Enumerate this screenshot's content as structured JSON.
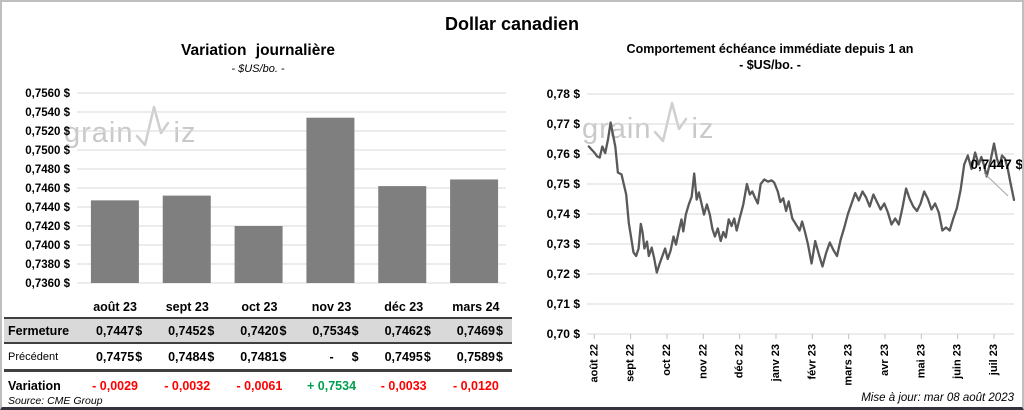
{
  "page": {
    "title": "Dollar canadien",
    "source": "Source: CME Group",
    "updated": "Mise à jour: mar 08 août 2023",
    "watermark_part1": "grain",
    "watermark_part2": "iz"
  },
  "colors": {
    "bar": "#7f7f7f",
    "line": "#595959",
    "grid": "#d9d9d9",
    "tick": "#bfbfbf",
    "negative": "#ff0000",
    "positive": "#00a050",
    "shaded_row_bg": "#d9d9d9",
    "table_border": "#404040",
    "annotation_leader": "#a6a6a6",
    "watermark": "#c9c9c9"
  },
  "chart_data": [
    {
      "type": "bar",
      "title": "Variation journalière",
      "subtitle": "- $US/bo. -",
      "categories": [
        "août 23",
        "sept 23",
        "oct 23",
        "nov 23",
        "déc 23",
        "mars 24"
      ],
      "values": [
        0.7447,
        0.7452,
        0.742,
        0.7534,
        0.7462,
        0.7469
      ],
      "ylim": [
        0.736,
        0.756
      ],
      "ytick_step": 0.002,
      "ytick_format": "0,0000 $",
      "xlabel": "",
      "ylabel": "",
      "grid": true,
      "legend": "none"
    },
    {
      "type": "line",
      "title": "Comportement échéance immédiate depuis 1 an",
      "subtitle": "- $US/bo. -",
      "x_tick_labels": [
        "août 22",
        "sept 22",
        "oct 22",
        "nov 22",
        "déc 22",
        "janv 23",
        "févr 23",
        "mars 23",
        "avr 23",
        "mai 23",
        "juin 23",
        "juil 23"
      ],
      "xlim": [
        -0.2,
        11.55
      ],
      "ylim": [
        0.7,
        0.78
      ],
      "ytick_step": 0.01,
      "ytick_format": "0,00 $",
      "grid": true,
      "legend": "none",
      "last_point_label": "0,7447 $",
      "points": [
        [
          -0.15,
          0.7625
        ],
        [
          0,
          0.7605
        ],
        [
          0.08,
          0.7592
        ],
        [
          0.15,
          0.7588
        ],
        [
          0.22,
          0.7625
        ],
        [
          0.3,
          0.7603
        ],
        [
          0.38,
          0.765
        ],
        [
          0.45,
          0.7705
        ],
        [
          0.52,
          0.766
        ],
        [
          0.58,
          0.7625
        ],
        [
          0.65,
          0.7538
        ],
        [
          0.75,
          0.7532
        ],
        [
          0.82,
          0.7495
        ],
        [
          0.88,
          0.7465
        ],
        [
          0.95,
          0.737
        ],
        [
          1.02,
          0.7318
        ],
        [
          1.08,
          0.7272
        ],
        [
          1.15,
          0.726
        ],
        [
          1.22,
          0.7285
        ],
        [
          1.28,
          0.7367
        ],
        [
          1.33,
          0.7338
        ],
        [
          1.38,
          0.7285
        ],
        [
          1.45,
          0.7308
        ],
        [
          1.5,
          0.726
        ],
        [
          1.58,
          0.7288
        ],
        [
          1.65,
          0.7252
        ],
        [
          1.72,
          0.7205
        ],
        [
          1.8,
          0.7235
        ],
        [
          1.88,
          0.7262
        ],
        [
          1.95,
          0.7285
        ],
        [
          2.02,
          0.725
        ],
        [
          2.1,
          0.7278
        ],
        [
          2.18,
          0.7325
        ],
        [
          2.25,
          0.7298
        ],
        [
          2.32,
          0.734
        ],
        [
          2.4,
          0.7382
        ],
        [
          2.45,
          0.7342
        ],
        [
          2.52,
          0.7398
        ],
        [
          2.6,
          0.7432
        ],
        [
          2.68,
          0.7458
        ],
        [
          2.75,
          0.7535
        ],
        [
          2.82,
          0.7448
        ],
        [
          2.88,
          0.7472
        ],
        [
          2.95,
          0.7435
        ],
        [
          3.02,
          0.7398
        ],
        [
          3.1,
          0.7432
        ],
        [
          3.18,
          0.7398
        ],
        [
          3.25,
          0.735
        ],
        [
          3.32,
          0.7325
        ],
        [
          3.4,
          0.7352
        ],
        [
          3.48,
          0.731
        ],
        [
          3.55,
          0.734
        ],
        [
          3.62,
          0.7322
        ],
        [
          3.7,
          0.7382
        ],
        [
          3.78,
          0.736
        ],
        [
          3.85,
          0.7385
        ],
        [
          3.92,
          0.7345
        ],
        [
          4,
          0.7385
        ],
        [
          4.1,
          0.7432
        ],
        [
          4.2,
          0.75
        ],
        [
          4.28,
          0.7465
        ],
        [
          4.35,
          0.7475
        ],
        [
          4.42,
          0.7455
        ],
        [
          4.5,
          0.7435
        ],
        [
          4.58,
          0.75
        ],
        [
          4.68,
          0.7515
        ],
        [
          4.78,
          0.7508
        ],
        [
          4.88,
          0.7512
        ],
        [
          4.95,
          0.7505
        ],
        [
          5.05,
          0.7475
        ],
        [
          5.12,
          0.744
        ],
        [
          5.2,
          0.7452
        ],
        [
          5.28,
          0.741
        ],
        [
          5.35,
          0.7442
        ],
        [
          5.45,
          0.7385
        ],
        [
          5.55,
          0.7365
        ],
        [
          5.65,
          0.7345
        ],
        [
          5.72,
          0.7375
        ],
        [
          5.8,
          0.734
        ],
        [
          5.88,
          0.73
        ],
        [
          5.98,
          0.7235
        ],
        [
          6.08,
          0.731
        ],
        [
          6.18,
          0.7265
        ],
        [
          6.28,
          0.7225
        ],
        [
          6.38,
          0.727
        ],
        [
          6.48,
          0.7305
        ],
        [
          6.58,
          0.728
        ],
        [
          6.68,
          0.726
        ],
        [
          6.78,
          0.7315
        ],
        [
          6.88,
          0.7355
        ],
        [
          6.98,
          0.74
        ],
        [
          7.08,
          0.7435
        ],
        [
          7.18,
          0.747
        ],
        [
          7.28,
          0.7445
        ],
        [
          7.38,
          0.7475
        ],
        [
          7.48,
          0.7455
        ],
        [
          7.58,
          0.7425
        ],
        [
          7.68,
          0.7465
        ],
        [
          7.78,
          0.744
        ],
        [
          7.88,
          0.7415
        ],
        [
          7.98,
          0.7435
        ],
        [
          8.08,
          0.7405
        ],
        [
          8.18,
          0.7365
        ],
        [
          8.28,
          0.7385
        ],
        [
          8.38,
          0.7365
        ],
        [
          8.48,
          0.742
        ],
        [
          8.58,
          0.7485
        ],
        [
          8.68,
          0.745
        ],
        [
          8.78,
          0.7425
        ],
        [
          8.88,
          0.741
        ],
        [
          8.98,
          0.7435
        ],
        [
          9.08,
          0.7475
        ],
        [
          9.18,
          0.745
        ],
        [
          9.28,
          0.7415
        ],
        [
          9.38,
          0.7435
        ],
        [
          9.48,
          0.7405
        ],
        [
          9.58,
          0.7345
        ],
        [
          9.68,
          0.7355
        ],
        [
          9.78,
          0.7345
        ],
        [
          9.88,
          0.7385
        ],
        [
          9.98,
          0.742
        ],
        [
          10.08,
          0.748
        ],
        [
          10.18,
          0.7565
        ],
        [
          10.28,
          0.7595
        ],
        [
          10.38,
          0.755
        ],
        [
          10.48,
          0.7605
        ],
        [
          10.58,
          0.7565
        ],
        [
          10.65,
          0.759
        ],
        [
          10.72,
          0.7565
        ],
        [
          10.8,
          0.7525
        ],
        [
          10.9,
          0.7575
        ],
        [
          11,
          0.7635
        ],
        [
          11.08,
          0.7585
        ],
        [
          11.15,
          0.756
        ],
        [
          11.22,
          0.7595
        ],
        [
          11.3,
          0.7585
        ],
        [
          11.38,
          0.755
        ],
        [
          11.45,
          0.7505
        ],
        [
          11.55,
          0.7447
        ]
      ]
    }
  ],
  "table": {
    "header": [
      "",
      "août 23",
      "sept 23",
      "oct 23",
      "nov 23",
      "déc 23",
      "mars 24"
    ],
    "rows": [
      {
        "key": "fermeture",
        "label": "Fermeture",
        "unit": "$",
        "shaded": true,
        "values": [
          "0,7447",
          "0,7452",
          "0,7420",
          "0,7534",
          "0,7462",
          "0,7469"
        ]
      },
      {
        "key": "precedent",
        "label": "Précédent",
        "unit": "$",
        "shaded": false,
        "values": [
          "0,7475",
          "0,7484",
          "0,7481",
          "-",
          "0,7495",
          "0,7589"
        ]
      },
      {
        "key": "variation",
        "label": "Variation",
        "unit": "",
        "values": [
          "- 0,0029",
          "- 0,0032",
          "- 0,0061",
          "+ 0,7534",
          "- 0,0033",
          "- 0,0120"
        ],
        "signs": [
          "neg",
          "neg",
          "neg",
          "pos",
          "neg",
          "neg"
        ]
      }
    ]
  }
}
